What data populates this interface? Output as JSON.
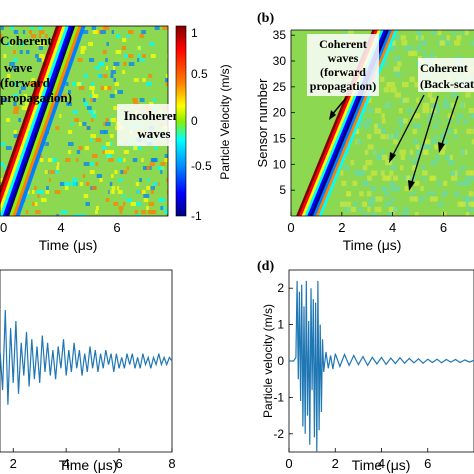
{
  "panels": {
    "a": {
      "annotations": [
        "Coherent",
        "wave",
        "(forward",
        "propagation)"
      ],
      "annotation_incoherent": [
        "Incoherent",
        "waves"
      ],
      "xlabel": "Time (μs)",
      "colorbar": {
        "label": "Particle Velocity (m/s)",
        "ticks": [
          "1",
          "0.5",
          "0",
          "-0.5",
          "-1"
        ]
      }
    },
    "b": {
      "label": "(b)",
      "ylabel": "Sensor number",
      "xlabel": "Time (μs)",
      "annotation_forward": [
        "Coherent",
        "waves",
        "(forward",
        "propagation)"
      ],
      "annotation_back": [
        "Coherent",
        "(Back-scat"
      ]
    },
    "c": {
      "xlabel": "Time (μs)"
    },
    "d": {
      "label": "(d)",
      "ylabel": "Particle velocity (m/s)",
      "xlabel": "Time (μs)"
    }
  },
  "chart_data": [
    {
      "type": "heatmap",
      "panel": "a",
      "xlabel": "Time (μs)",
      "x_ticks": [
        4,
        6
      ],
      "colorbar_range": [
        -1,
        1
      ],
      "colormap": "jet",
      "description_values": "coherent forward wave front diagonal band plus incoherent scattered waves"
    },
    {
      "type": "heatmap",
      "panel": "b",
      "xlabel": "Time (μs)",
      "ylabel": "Sensor number",
      "xlim": [
        0,
        7.2
      ],
      "ylim": [
        0,
        36
      ],
      "x_ticks": [
        0,
        2,
        4,
        6
      ],
      "y_ticks": [
        5,
        10,
        15,
        20,
        25,
        30,
        35
      ],
      "wavefront": {
        "time_start": 0.2,
        "time_end": 3.2,
        "sensor_start": 0,
        "sensor_end": 36
      }
    },
    {
      "type": "line",
      "panel": "c",
      "xlabel": "Time (μs)",
      "x_ticks": [
        2,
        4,
        6,
        8
      ],
      "xlim": [
        1.5,
        8
      ],
      "series": [
        {
          "color": "#1f77b4",
          "x": [
            1.5,
            1.6,
            1.7,
            1.8,
            1.9,
            2.0,
            2.1,
            2.2,
            2.3,
            2.4,
            2.5,
            2.6,
            2.7,
            2.8,
            2.9,
            3.0,
            3.1,
            3.2,
            3.3,
            3.4,
            3.5,
            3.6,
            3.7,
            3.8,
            3.9,
            4.0,
            4.1,
            4.2,
            4.3,
            4.4,
            4.5,
            4.6,
            4.7,
            4.8,
            4.9,
            5.0,
            5.1,
            5.2,
            5.3,
            5.4,
            5.5,
            5.6,
            5.7,
            5.8,
            5.9,
            6.0,
            6.1,
            6.2,
            6.3,
            6.4,
            6.5,
            6.6,
            6.7,
            6.8,
            6.9,
            7.0,
            7.1,
            7.2,
            7.3,
            7.4,
            7.5,
            7.6,
            7.7,
            7.8,
            7.9,
            8.0
          ],
          "values": [
            0.3,
            -0.8,
            1.4,
            -1.2,
            0.9,
            -0.6,
            1.1,
            -0.9,
            0.5,
            -0.4,
            0.8,
            -0.7,
            0.6,
            -0.5,
            0.4,
            -0.6,
            0.7,
            -0.3,
            0.5,
            -0.4,
            0.3,
            -0.5,
            0.4,
            -0.2,
            0.6,
            -0.4,
            0.3,
            -0.3,
            0.5,
            -0.2,
            0.3,
            -0.4,
            0.2,
            -0.3,
            0.4,
            -0.2,
            0.3,
            -0.3,
            0.2,
            -0.2,
            0.3,
            -0.1,
            0.2,
            -0.3,
            0.2,
            -0.2,
            0.1,
            -0.2,
            0.2,
            -0.1,
            0.2,
            -0.2,
            0.1,
            -0.2,
            0.2,
            -0.1,
            0.1,
            -0.2,
            0.1,
            -0.1,
            0.2,
            -0.1,
            0.1,
            -0.1,
            0.1,
            0.0
          ]
        }
      ],
      "ylim": [
        -2.5,
        2.5
      ]
    },
    {
      "type": "line",
      "panel": "d",
      "xlabel": "Time (μs)",
      "ylabel": "Particle velocity (m/s)",
      "xlim": [
        0,
        8
      ],
      "ylim": [
        -2.5,
        2.5
      ],
      "x_ticks": [
        0,
        2,
        4,
        6
      ],
      "y_ticks": [
        -2,
        -1,
        0,
        1,
        2
      ],
      "series": [
        {
          "color": "#1f77b4",
          "x": [
            0,
            0.1,
            0.2,
            0.3,
            0.35,
            0.4,
            0.45,
            0.5,
            0.55,
            0.6,
            0.65,
            0.7,
            0.75,
            0.8,
            0.85,
            0.9,
            0.95,
            1.0,
            1.05,
            1.1,
            1.15,
            1.2,
            1.25,
            1.3,
            1.35,
            1.4,
            1.45,
            1.5,
            1.6,
            1.7,
            1.8,
            1.9,
            2.0,
            2.2,
            2.4,
            2.6,
            2.8,
            3.0,
            3.2,
            3.4,
            3.6,
            3.8,
            4.0,
            4.2,
            4.4,
            4.6,
            4.8,
            5.0,
            5.2,
            5.4,
            5.6,
            5.8,
            6.0,
            6.2,
            6.4,
            6.6,
            6.8,
            7.0,
            7.2,
            7.4,
            7.6,
            7.8,
            8.0
          ],
          "values": [
            0,
            0,
            0,
            0.1,
            2.2,
            -0.5,
            1.9,
            -1.1,
            2.1,
            -1.8,
            1.5,
            -2.0,
            2.2,
            -1.5,
            1.1,
            -2.3,
            2.0,
            -0.8,
            1.7,
            -2.1,
            1.6,
            -2.5,
            2.2,
            -1.9,
            1.0,
            -1.4,
            0.6,
            -0.3,
            0.25,
            -0.2,
            0.15,
            -0.22,
            0.2,
            -0.15,
            0.18,
            -0.12,
            0.15,
            -0.1,
            0.12,
            -0.12,
            0.1,
            -0.08,
            0.1,
            -0.09,
            0.08,
            -0.07,
            0.09,
            -0.06,
            0.07,
            -0.05,
            0.06,
            -0.06,
            0.05,
            -0.04,
            0.05,
            -0.05,
            0.04,
            -0.03,
            0.04,
            -0.04,
            0.03,
            -0.03,
            0.02
          ]
        }
      ]
    }
  ]
}
